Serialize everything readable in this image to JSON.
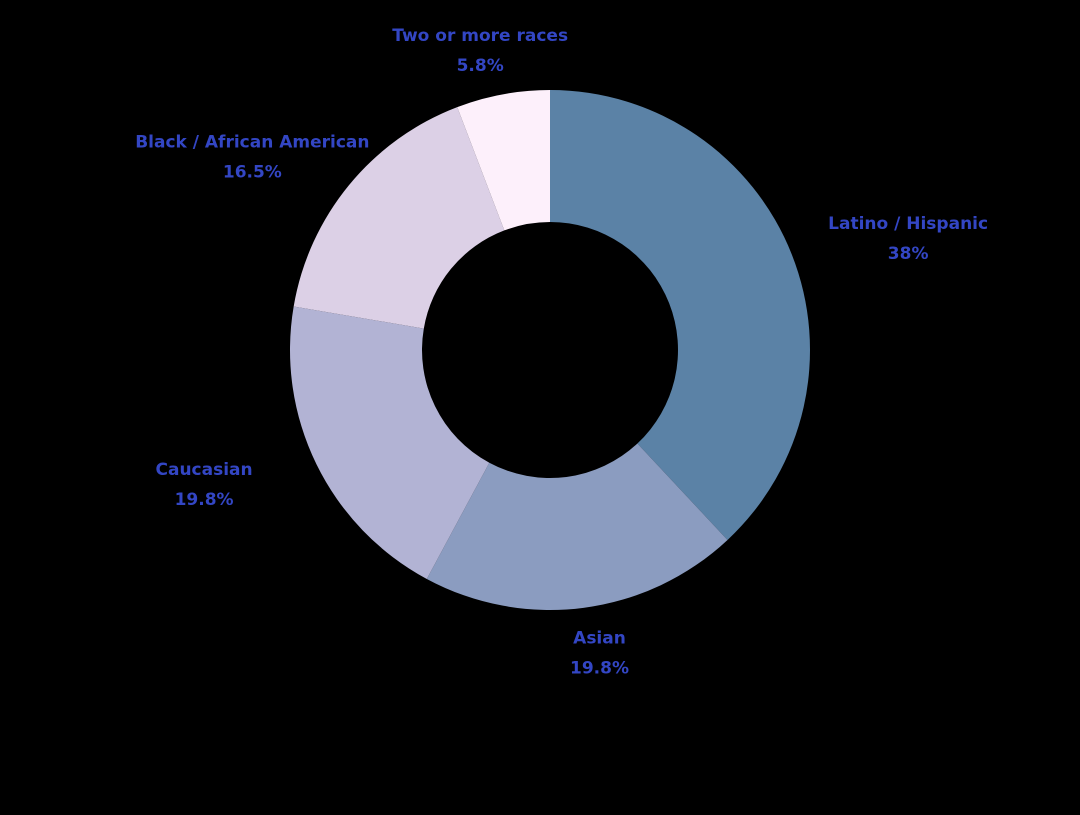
{
  "chart_data": {
    "type": "donut",
    "categories": [
      "Latino / Hispanic",
      "Asian",
      "Caucasian",
      "Black / African American",
      "Two or more races"
    ],
    "values": [
      38,
      19.8,
      19.8,
      16.5,
      5.8
    ],
    "value_labels": [
      "38%",
      "19.8%",
      "19.8%",
      "16.5%",
      "5.8%"
    ],
    "colors": [
      "#5b82a6",
      "#8b9cc0",
      "#b2b3d4",
      "#dcd0e6",
      "#fdf0fb"
    ]
  }
}
